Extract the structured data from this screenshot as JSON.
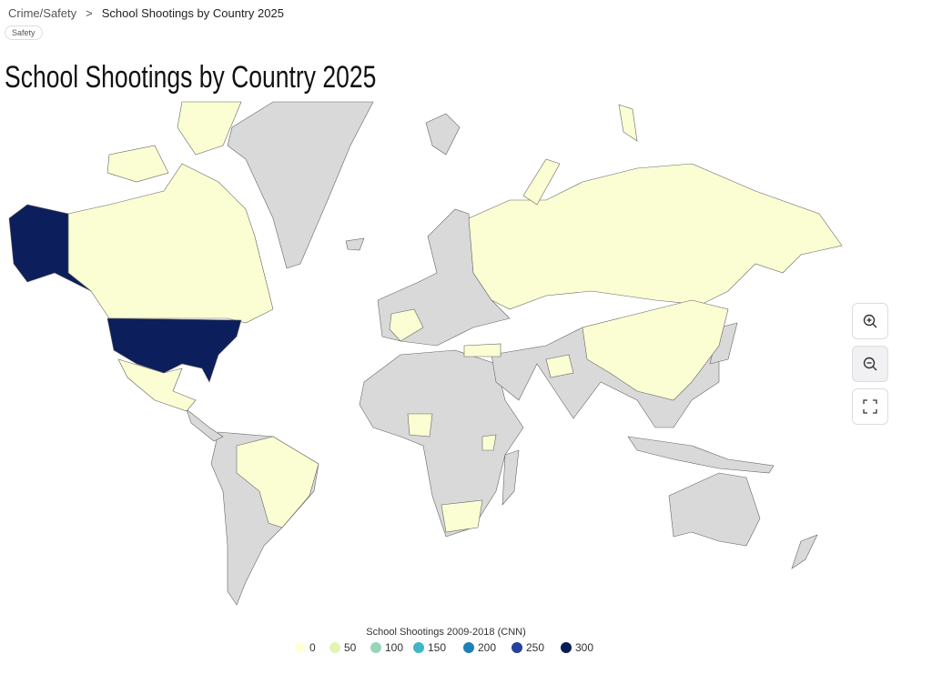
{
  "breadcrumb": {
    "parent": "Crime/Safety",
    "separator": ">",
    "current": "School Shootings by Country 2025"
  },
  "tag": "Safety",
  "title": "School Shootings by Country 2025",
  "legend": {
    "title": "School Shootings 2009-2018 (CNN)",
    "stops": [
      {
        "value": 0,
        "color": "#ffffd9"
      },
      {
        "value": 50,
        "color": "#e3f4b4"
      },
      {
        "value": 100,
        "color": "#97d6b9"
      },
      {
        "value": 150,
        "color": "#41b6c4"
      },
      {
        "value": 200,
        "color": "#1f80b8"
      },
      {
        "value": 250,
        "color": "#24429a"
      },
      {
        "value": 300,
        "color": "#081d58"
      }
    ]
  }
}
